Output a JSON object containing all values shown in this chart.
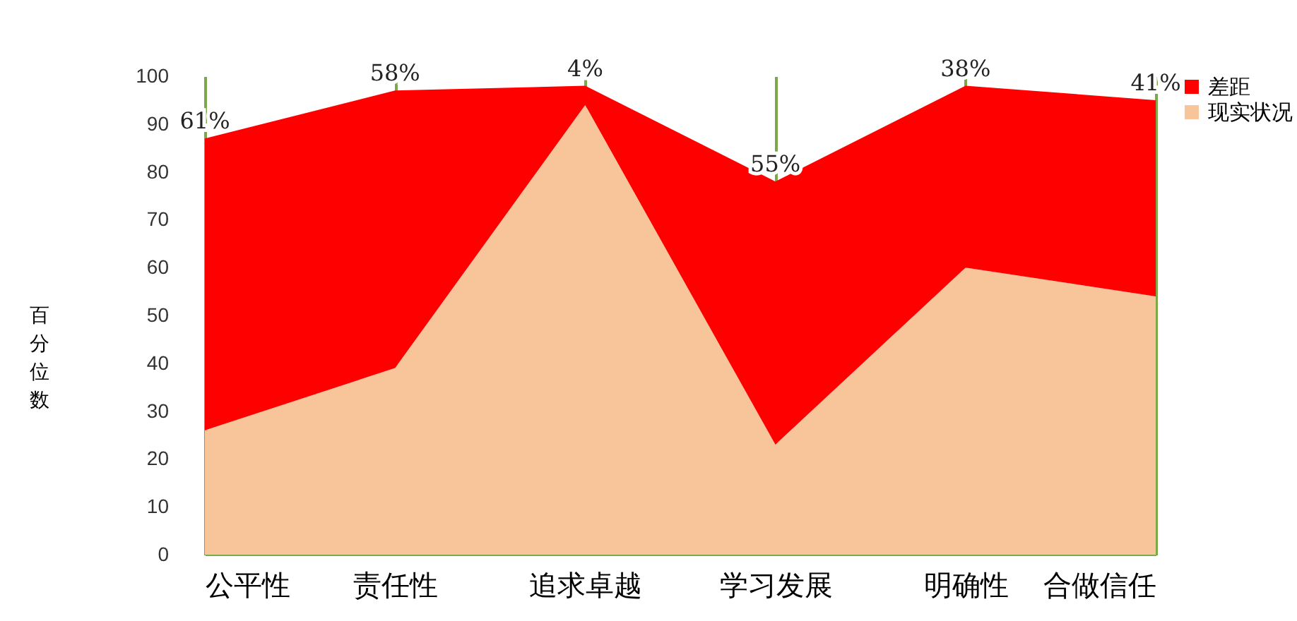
{
  "chart_data": {
    "type": "area",
    "stacked": true,
    "ylabel": "百分位数",
    "categories": [
      "公平性",
      "责任性",
      "追求卓越",
      "学习发展",
      "明确性",
      "合做信任"
    ],
    "series": [
      {
        "name": "现实状况",
        "color": "#f8c49a",
        "values": [
          26,
          39,
          94,
          23,
          60,
          54
        ]
      },
      {
        "name": "差距",
        "color": "#ff0000",
        "values": [
          61,
          58,
          4,
          55,
          38,
          41
        ],
        "value_labels": [
          "61%",
          "58%",
          "4%",
          "55%",
          "38%",
          "41%"
        ]
      }
    ],
    "ylim": [
      0,
      100
    ],
    "yticks": [
      0,
      10,
      20,
      30,
      40,
      50,
      60,
      70,
      80,
      90,
      100
    ],
    "grid": "x",
    "legend": "right"
  }
}
